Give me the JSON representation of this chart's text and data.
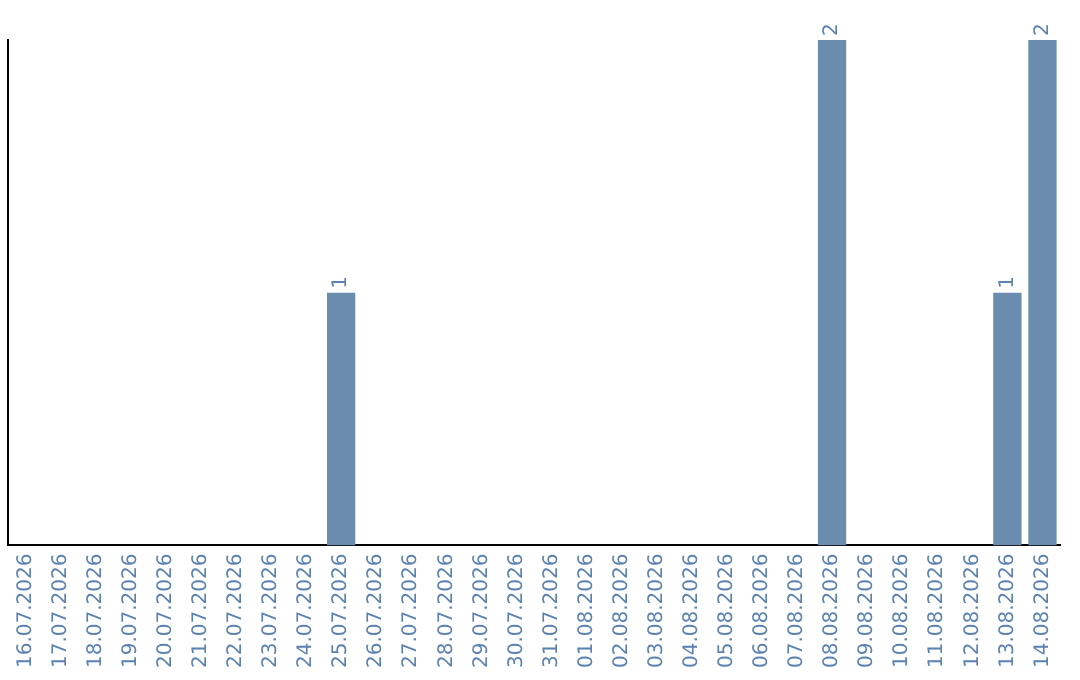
{
  "chart_data": {
    "type": "bar",
    "categories": [
      "16.07.2026",
      "17.07.2026",
      "18.07.2026",
      "19.07.2026",
      "20.07.2026",
      "21.07.2026",
      "22.07.2026",
      "23.07.2026",
      "24.07.2026",
      "25.07.2026",
      "26.07.2026",
      "27.07.2026",
      "28.07.2026",
      "29.07.2026",
      "30.07.2026",
      "31.07.2026",
      "01.08.2026",
      "02.08.2026",
      "03.08.2026",
      "04.08.2026",
      "05.08.2026",
      "06.08.2026",
      "07.08.2026",
      "08.08.2026",
      "09.08.2026",
      "10.08.2026",
      "11.08.2026",
      "12.08.2026",
      "13.08.2026",
      "14.08.2026"
    ],
    "values": [
      0,
      0,
      0,
      0,
      0,
      0,
      0,
      0,
      0,
      1,
      0,
      0,
      0,
      0,
      0,
      0,
      0,
      0,
      0,
      0,
      0,
      0,
      0,
      2,
      0,
      0,
      0,
      0,
      1,
      2
    ],
    "value_labels": [
      null,
      null,
      null,
      null,
      null,
      null,
      null,
      null,
      null,
      "1",
      null,
      null,
      null,
      null,
      null,
      null,
      null,
      null,
      null,
      null,
      null,
      null,
      null,
      "2",
      null,
      null,
      null,
      null,
      "1",
      "2"
    ],
    "color": "#6a8caf",
    "grid": false,
    "legend": false,
    "tick_labels": "x"
  }
}
